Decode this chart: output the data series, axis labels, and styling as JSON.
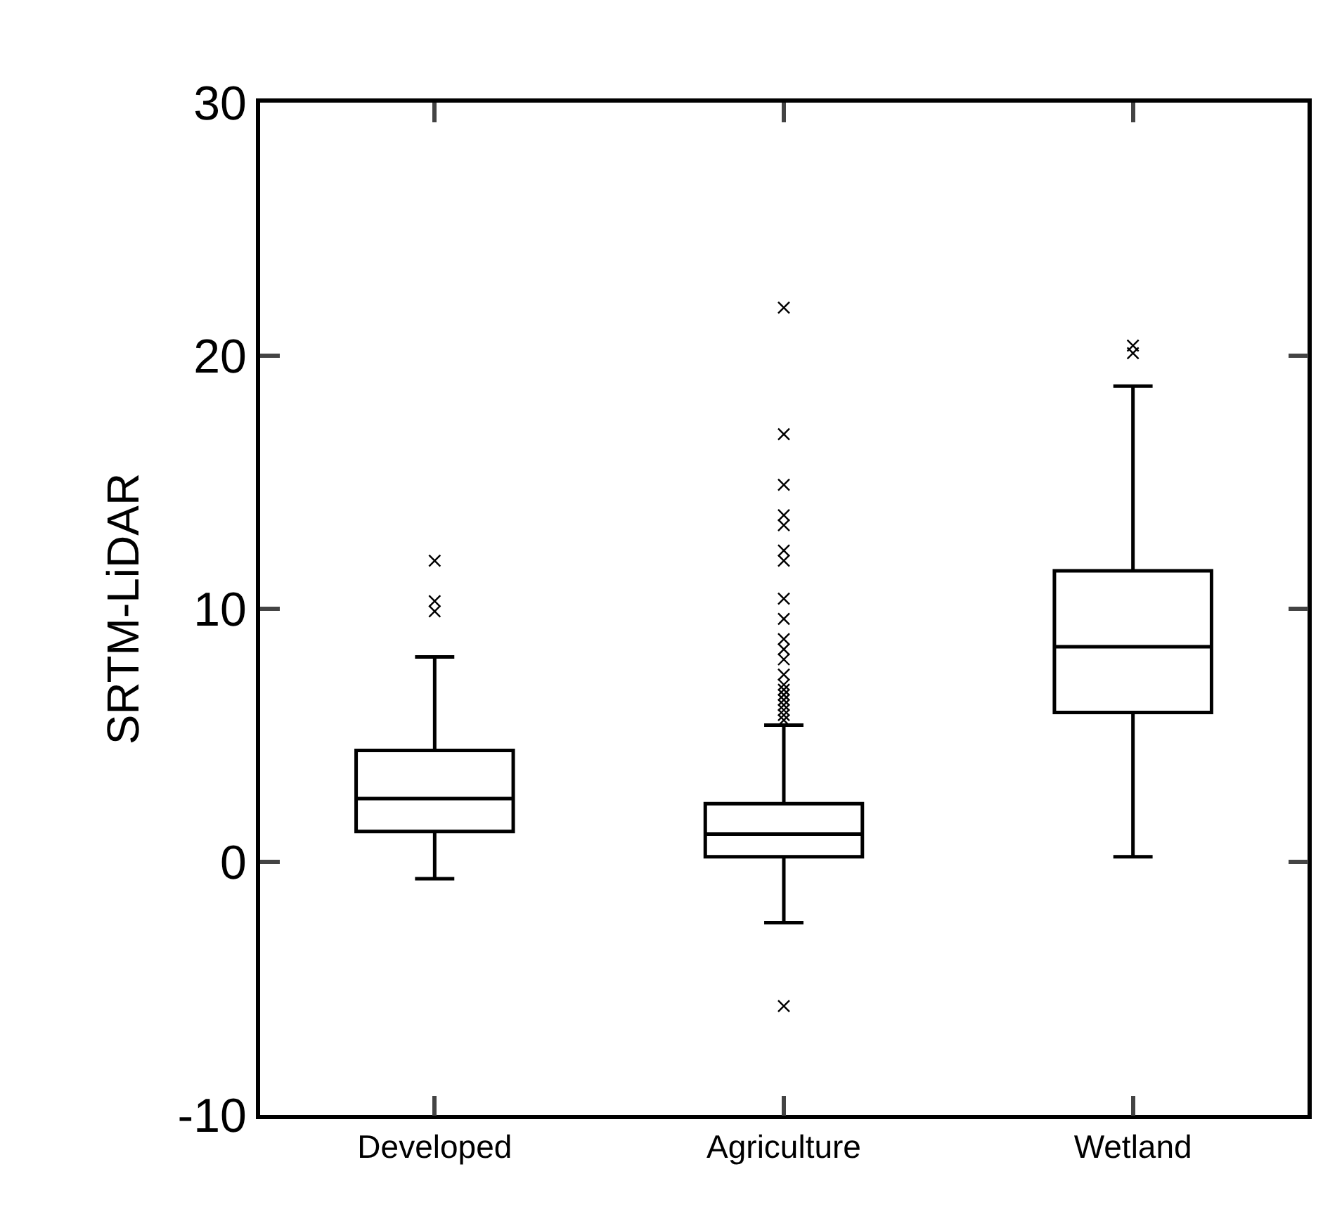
{
  "chart_data": {
    "type": "box",
    "ylabel": "SRTM-LiDAR",
    "categories": [
      "Developed",
      "Agriculture",
      "Wetland"
    ],
    "boxes": [
      {
        "low": -0.67,
        "q1": 1.2,
        "median": 2.5,
        "q3": 4.4,
        "high": 8.1,
        "outliers": [
          9.9,
          10.3,
          11.9
        ]
      },
      {
        "low": -2.4,
        "q1": 0.2,
        "median": 1.1,
        "q3": 2.3,
        "high": 5.4,
        "outliers": [
          -5.7,
          5.6,
          5.8,
          6.0,
          6.2,
          6.4,
          6.6,
          6.8,
          7.0,
          7.4,
          8.0,
          8.4,
          8.8,
          9.6,
          10.4,
          11.9,
          12.3,
          13.3,
          13.7,
          14.9,
          16.9,
          21.9
        ]
      },
      {
        "low": 0.2,
        "q1": 5.9,
        "median": 8.5,
        "q3": 11.5,
        "high": 18.8,
        "outliers": [
          20.1,
          20.4
        ]
      }
    ],
    "color": "#000000",
    "marker": "cross",
    "ylim": [
      -10,
      30
    ],
    "yticks": [
      -10,
      0,
      10,
      20,
      30
    ]
  }
}
